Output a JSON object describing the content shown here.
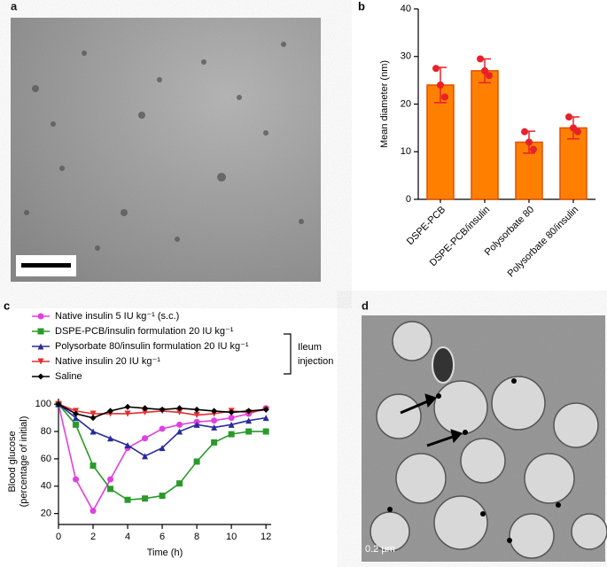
{
  "panels": {
    "a": "a",
    "b": "b",
    "c": "c",
    "d": "d"
  },
  "image_d": {
    "scale_label": "0.2 µm"
  },
  "bracket": {
    "line1": "Ileum",
    "line2": "injection"
  },
  "chart_data": [
    {
      "type": "bar",
      "y_label": "Mean diameter (nm)",
      "categories": [
        "DSPE-PCB",
        "DSPE-PCB/insulin",
        "Polysorbate 80",
        "Polysorbate 80/insulin"
      ],
      "values": [
        24,
        27,
        12,
        15
      ],
      "errors": [
        3.7,
        2.5,
        2.3,
        2.3
      ],
      "points": [
        [
          27.5,
          24,
          21.5
        ],
        [
          29.5,
          27,
          26
        ],
        [
          14.2,
          12,
          10.5
        ],
        [
          17.3,
          15,
          14.2
        ]
      ],
      "color": "#ff8000",
      "point_color": "#e8202a",
      "ylim": [
        0,
        40
      ],
      "yticks": [
        0,
        10,
        20,
        30,
        40
      ]
    },
    {
      "type": "line",
      "x_label": "Time (h)",
      "y_label": [
        "Blood glucose",
        "(percentage of initial)"
      ],
      "x": [
        0,
        1,
        2,
        3,
        4,
        5,
        6,
        7,
        8,
        9,
        10,
        11,
        12
      ],
      "series": [
        {
          "name": "Native insulin 5 IU kg⁻¹ (s.c.)",
          "color": "#e040e0",
          "marker": "circle",
          "values": [
            100,
            45,
            22,
            45,
            68,
            75,
            82,
            85,
            87,
            88,
            90,
            93,
            97
          ]
        },
        {
          "name": "DSPE-PCB/insulin formulation 20 IU kg⁻¹",
          "color": "#2a9a2a",
          "marker": "square",
          "values": [
            100,
            85,
            55,
            38,
            30,
            31,
            33,
            42,
            58,
            72,
            78,
            80,
            80
          ]
        },
        {
          "name": "Polysorbate 80/insulin formulation 20 IU kg⁻¹",
          "color": "#2a2a9a",
          "marker": "triangle",
          "values": [
            100,
            90,
            80,
            75,
            70,
            62,
            68,
            80,
            85,
            83,
            85,
            88,
            90
          ]
        },
        {
          "name": "Native insulin 20 IU kg⁻¹",
          "color": "#e03030",
          "marker": "tri-down",
          "values": [
            100,
            95,
            93,
            93,
            93,
            94,
            95,
            94,
            92,
            93,
            95,
            94,
            96
          ]
        },
        {
          "name": "Saline",
          "color": "#000000",
          "marker": "diamond",
          "values": [
            100,
            93,
            90,
            95,
            98,
            97,
            96,
            97,
            96,
            95,
            94,
            95,
            96
          ]
        }
      ],
      "xlim": [
        0,
        12.3
      ],
      "ylim": [
        12,
        104
      ],
      "xticks": [
        0,
        2,
        4,
        6,
        8,
        10,
        12
      ],
      "yticks": [
        20,
        40,
        60,
        80,
        100
      ]
    }
  ]
}
